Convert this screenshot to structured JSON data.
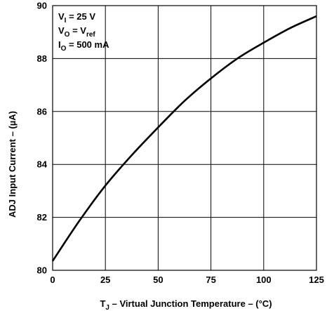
{
  "chart_data": {
    "type": "line",
    "xlabel": {
      "main": "T",
      "sub": "J",
      "rest": " – Virtual Junction Temperature – (°C)"
    },
    "ylabel": "ADJ Input Current – (µA)",
    "xlim": [
      0,
      125
    ],
    "ylim": [
      80,
      90
    ],
    "xticks": [
      0,
      25,
      50,
      75,
      100,
      125
    ],
    "yticks": [
      80,
      82,
      84,
      86,
      88,
      90
    ],
    "grid": true,
    "annotations": [
      {
        "main": "V",
        "sub": "I",
        "rest": " = 25 V"
      },
      {
        "main": "V",
        "sub": "O",
        "rest": " = V",
        "sub2": "ref"
      },
      {
        "main": "I",
        "sub": "O",
        "rest": " = 500 mA"
      }
    ],
    "series": [
      {
        "x": [
          0,
          12.5,
          25,
          37.5,
          50,
          62.5,
          75,
          87.5,
          100,
          112.5,
          125
        ],
        "values": [
          80.35,
          81.85,
          83.2,
          84.35,
          85.4,
          86.4,
          87.25,
          88.0,
          88.6,
          89.15,
          89.6
        ],
        "color": "#000000"
      }
    ]
  }
}
